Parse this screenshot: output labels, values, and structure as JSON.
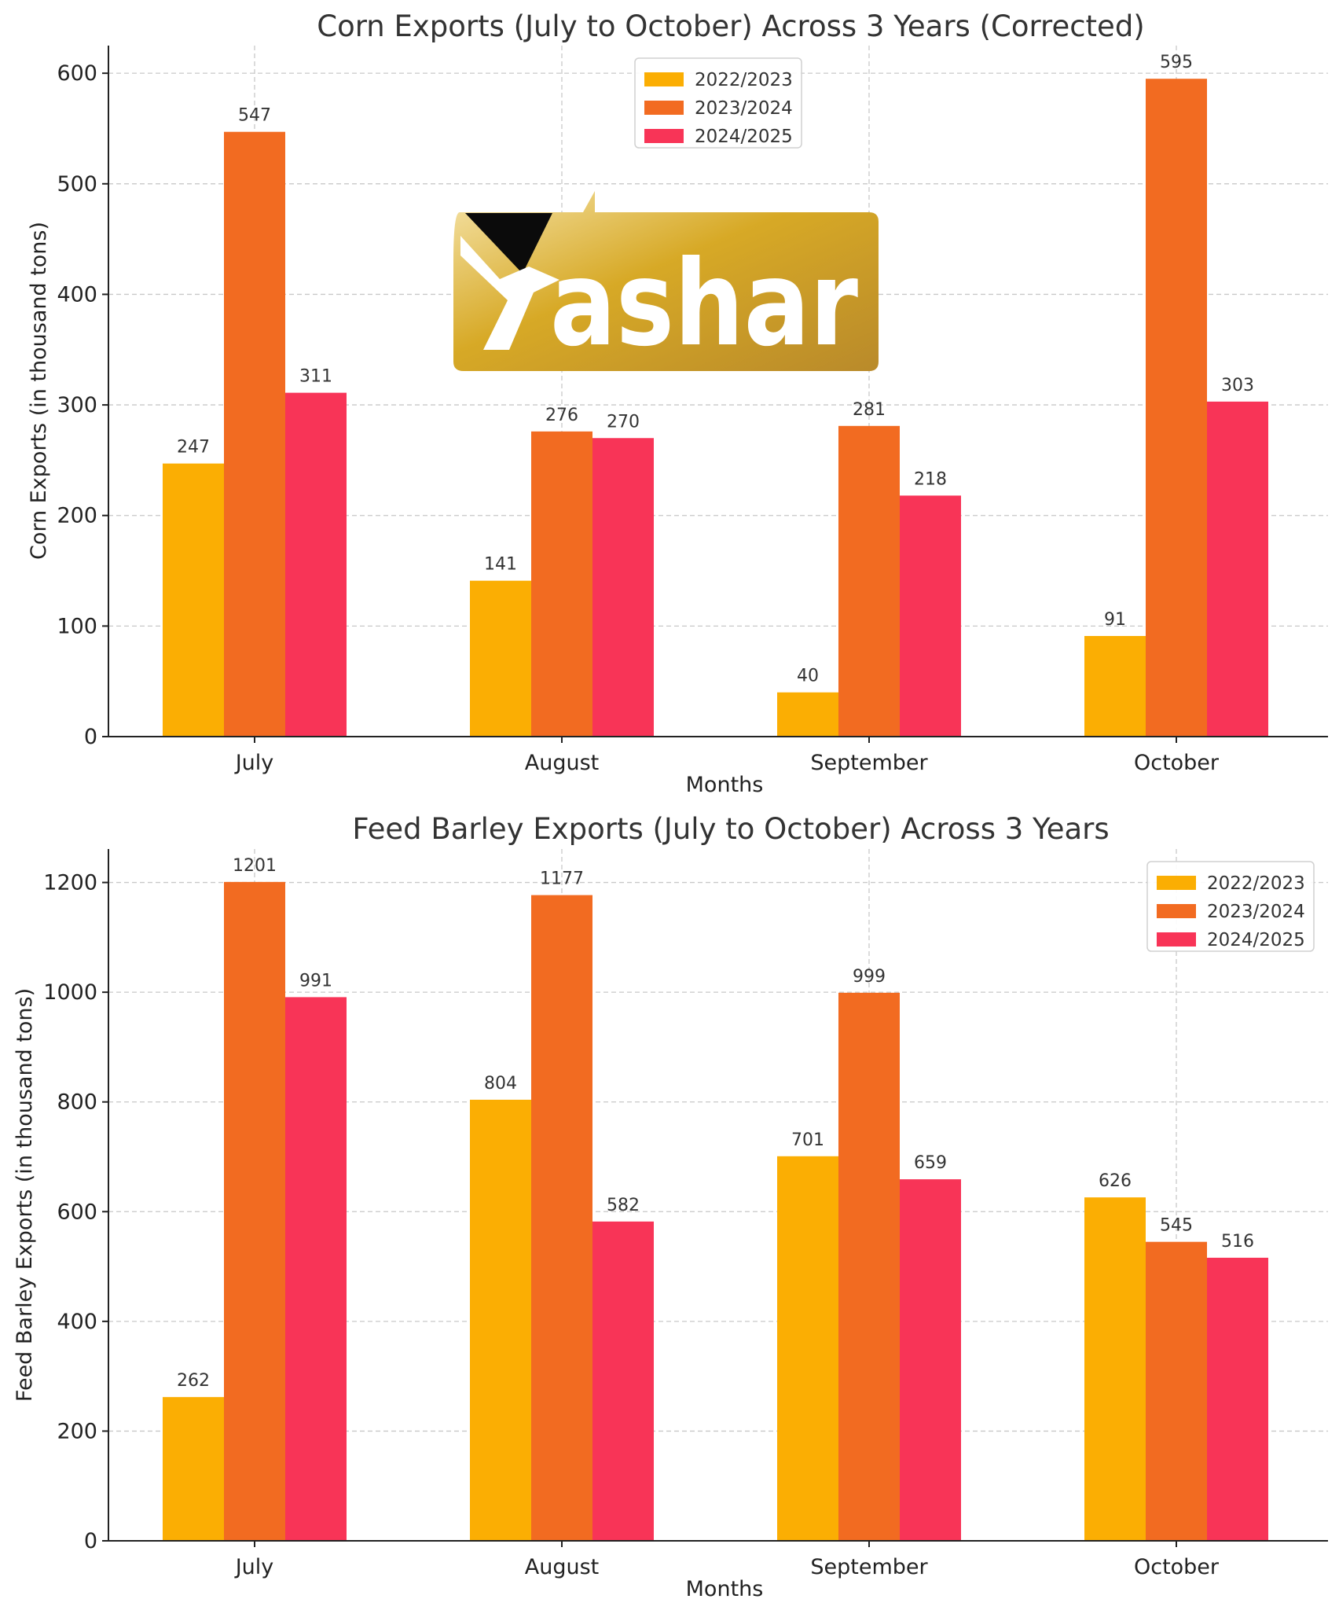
{
  "chart_data": [
    {
      "type": "bar",
      "title": "Corn Exports (July to October) Across 3 Years (Corrected)",
      "xlabel": "Months",
      "ylabel": "Corn Exports (in thousand tons)",
      "categories": [
        "July",
        "August",
        "September",
        "October"
      ],
      "series": [
        {
          "name": "2022/2023",
          "color": "#FBAE03",
          "values": [
            247,
            141,
            40,
            91
          ]
        },
        {
          "name": "2023/2024",
          "color": "#F26B21",
          "values": [
            547,
            276,
            281,
            595
          ]
        },
        {
          "name": "2024/2025",
          "color": "#F83457",
          "values": [
            311,
            270,
            218,
            303
          ]
        }
      ],
      "ylim": [
        0,
        625
      ],
      "yticks": [
        0,
        100,
        200,
        300,
        400,
        500,
        600
      ],
      "grid": true,
      "legend_position": "top-center"
    },
    {
      "type": "bar",
      "title": "Feed Barley Exports (July to October) Across 3 Years",
      "xlabel": "Months",
      "ylabel": "Feed Barley Exports (in thousand tons)",
      "categories": [
        "July",
        "August",
        "September",
        "October"
      ],
      "series": [
        {
          "name": "2022/2023",
          "color": "#FBAE03",
          "values": [
            262,
            804,
            701,
            626
          ]
        },
        {
          "name": "2023/2024",
          "color": "#F26B21",
          "values": [
            1201,
            1177,
            999,
            545
          ]
        },
        {
          "name": "2024/2025",
          "color": "#F83457",
          "values": [
            991,
            582,
            659,
            516
          ]
        }
      ],
      "ylim": [
        0,
        1261
      ],
      "yticks": [
        0,
        200,
        400,
        600,
        800,
        1000,
        1200
      ],
      "grid": true,
      "legend_position": "top-right"
    }
  ],
  "watermark": {
    "text": "ashar",
    "colors": {
      "gold_light": "#F5E3A8",
      "gold": "#D7A926",
      "gold_dark": "#B98A2A"
    }
  }
}
